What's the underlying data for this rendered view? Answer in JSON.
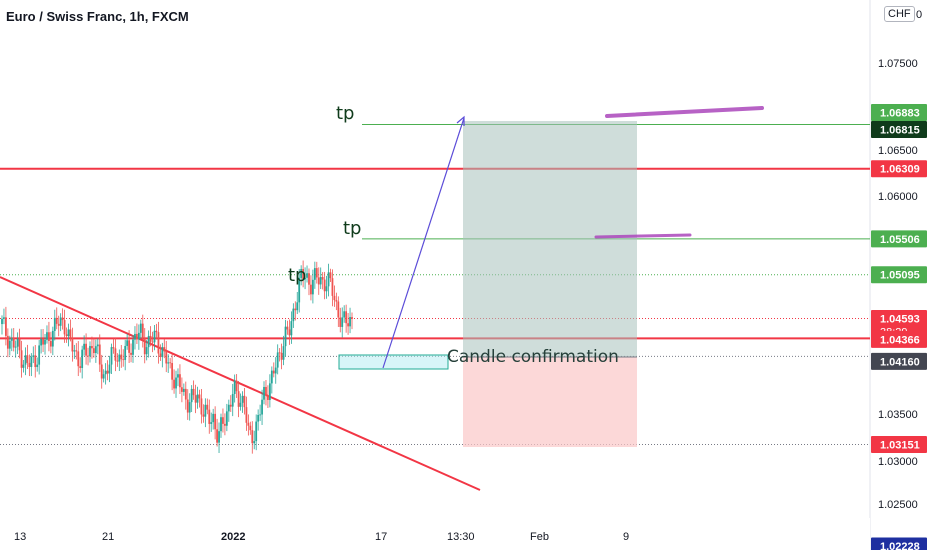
{
  "header": {
    "symbol_title": "Euro / Swiss Franc, 1h, FXCM",
    "currency_label": "CHF",
    "currency_suffix": "0"
  },
  "chart_data": {
    "type": "candlestick",
    "instrument": "Euro / Swiss Franc",
    "interval": "1h",
    "source": "FXCM",
    "ylim": [
      1.0217,
      1.0815
    ],
    "x_ticks": [
      "13",
      "21",
      "2022",
      "17",
      "13:30",
      "Feb",
      "9"
    ],
    "y_ticks": [
      "1.07500",
      "1.06500",
      "1.06000",
      "1.03500",
      "1.03000",
      "1.02500"
    ],
    "price_tags": [
      {
        "label": "1.06883",
        "value": 1.06883,
        "bg": "#4caf50",
        "fg": "#ffffff"
      },
      {
        "label": "1.06815",
        "value": 1.06815,
        "bg": "#0f3b1b",
        "fg": "#ffffff"
      },
      {
        "label": "1.06309",
        "value": 1.06309,
        "bg": "#f23645",
        "fg": "#ffffff"
      },
      {
        "label": "1.05506",
        "value": 1.05506,
        "bg": "#4caf50",
        "fg": "#ffffff"
      },
      {
        "label": "1.05095",
        "value": 1.05095,
        "bg": "#4caf50",
        "fg": "#ffffff"
      },
      {
        "label": "1.04593",
        "value": 1.04593,
        "bg": "#f23645",
        "fg": "#ffffff",
        "sub": "38:29"
      },
      {
        "label": "1.04366",
        "value": 1.04366,
        "bg": "#f23645",
        "fg": "#ffffff"
      },
      {
        "label": "1.04160",
        "value": 1.0416,
        "bg": "#434651",
        "fg": "#ffffff"
      },
      {
        "label": "1.03151",
        "value": 1.03151,
        "bg": "#f23645",
        "fg": "#ffffff"
      },
      {
        "label": "1.02228",
        "value": 1.02228,
        "bg": "#1e2fa0",
        "fg": "#ffffff"
      }
    ],
    "horizontal_lines": [
      {
        "value": 1.06309,
        "color": "#f23645",
        "style": "solid",
        "from": 0
      },
      {
        "value": 1.04366,
        "color": "#f23645",
        "style": "solid",
        "from": 0
      },
      {
        "value": 1.02228,
        "color": "#1e2fa0",
        "style": "solid",
        "from": 0
      },
      {
        "value": 1.06815,
        "color": "#4caf50",
        "style": "solid",
        "from": 362
      },
      {
        "value": 1.05506,
        "color": "#4caf50",
        "style": "solid",
        "from": 362
      },
      {
        "value": 1.05095,
        "color": "#4caf50",
        "style": "dotted",
        "from": 0
      },
      {
        "value": 1.04593,
        "color": "#f23645",
        "style": "dotted",
        "from": 0
      },
      {
        "value": 1.0416,
        "color": "#787b86",
        "style": "dotted",
        "from": 0
      },
      {
        "value": 1.03151,
        "color": "#787b86",
        "style": "dotted",
        "from": 0
      }
    ],
    "annotations": [
      {
        "text": "tp",
        "value": 1.06883
      },
      {
        "text": "tp",
        "value": 1.05625
      },
      {
        "text": "tp",
        "value": 1.05125
      },
      {
        "text": "Candle confirmation",
        "value": 1.04262
      }
    ],
    "position": {
      "entry": 1.04366,
      "target": 1.06815,
      "stop": 1.03151
    },
    "price_path": [
      1.0453,
      1.044,
      1.043,
      1.0425,
      1.0415,
      1.0405,
      1.041,
      1.042,
      1.0432,
      1.0438,
      1.0445,
      1.0455,
      1.0458,
      1.0432,
      1.0425,
      1.041,
      1.0418,
      1.0425,
      1.043,
      1.0405,
      1.0395,
      1.041,
      1.0422,
      1.0412,
      1.042,
      1.043,
      1.0438,
      1.0442,
      1.043,
      1.0432,
      1.044,
      1.042,
      1.041,
      1.0398,
      1.0385,
      1.0378,
      1.0365,
      1.0365,
      1.0372,
      1.0355,
      1.0343,
      1.0348,
      1.032,
      1.0342,
      1.0358,
      1.0375,
      1.037,
      1.0365,
      1.032,
      1.033,
      1.035,
      1.0372,
      1.0385,
      1.04,
      1.042,
      1.044,
      1.0444,
      1.048,
      1.0505,
      1.0508,
      1.05,
      1.0504,
      1.0505,
      1.05,
      1.0497,
      1.0475,
      1.045,
      1.046,
      1.0459
    ]
  }
}
